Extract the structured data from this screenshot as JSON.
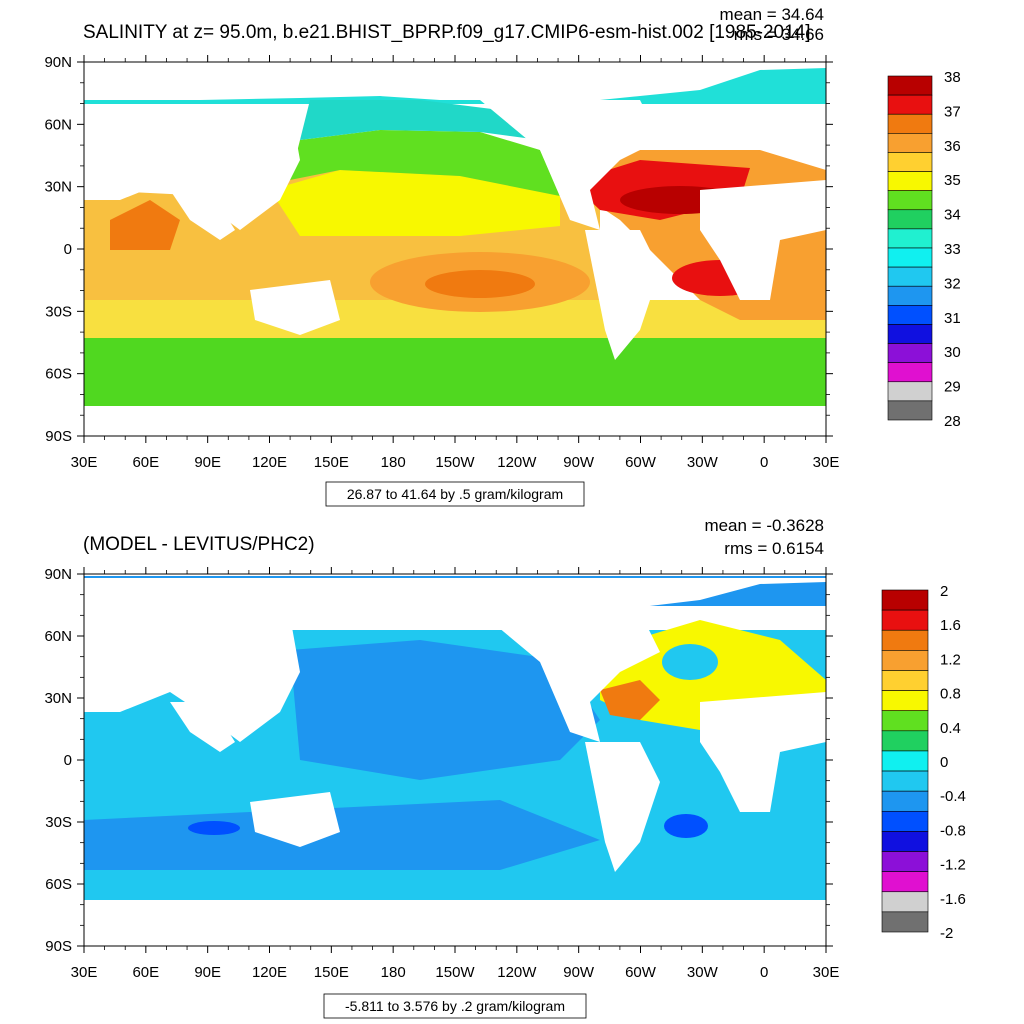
{
  "panels": [
    {
      "title": "SALINITY at z=  95.0m, b.e21.BHIST_BPRP.f09_g17.CMIP6-esm-hist.002 [1985-2014]",
      "stats": [
        "mean = 34.64",
        "rms = 34.66"
      ],
      "contour_info": "26.87 to 41.64 by .5 gram/kilogram"
    },
    {
      "title": "(MODEL - LEVITUS/PHC2)",
      "stats": [
        "mean = -0.3628",
        "rms = 0.6154"
      ],
      "contour_info": "-5.811 to 3.576 by .2 gram/kilogram"
    }
  ],
  "chart_data": [
    {
      "type": "heatmap",
      "title": "SALINITY at z=  95.0m, b.e21.BHIST_BPRP.f09_g17.CMIP6-esm-hist.002 [1985-2014]",
      "units": "gram/kilogram",
      "mean": 34.64,
      "rms": 34.66,
      "x_ticks": [
        "30E",
        "60E",
        "90E",
        "120E",
        "150E",
        "180",
        "150W",
        "120W",
        "90W",
        "60W",
        "30W",
        "0",
        "30E"
      ],
      "y_ticks": [
        "90N",
        "60N",
        "30N",
        "0",
        "30S",
        "60S",
        "90S"
      ],
      "xlim": [
        30,
        390
      ],
      "ylim": [
        -90,
        90
      ],
      "colorbar": {
        "labels": [
          "38",
          "37",
          "36",
          "35",
          "34",
          "33",
          "32",
          "31",
          "30",
          "29",
          "28"
        ],
        "colors": [
          "#b80000",
          "#e81010",
          "#f07a10",
          "#f8a030",
          "#ffd030",
          "#f8f800",
          "#60e020",
          "#20d060",
          "#20f0d0",
          "#10f0f0",
          "#20c8f0",
          "#1e96f0",
          "#0050ff",
          "#1010e0",
          "#8c10d8",
          "#e010d0",
          "#d0d0d0",
          "#707070"
        ],
        "reversed": true
      }
    },
    {
      "type": "heatmap",
      "title": "(MODEL - LEVITUS/PHC2)",
      "units": "gram/kilogram",
      "mean": -0.3628,
      "rms": 0.6154,
      "x_ticks": [
        "30E",
        "60E",
        "90E",
        "120E",
        "150E",
        "180",
        "150W",
        "120W",
        "90W",
        "60W",
        "30W",
        "0",
        "30E"
      ],
      "y_ticks": [
        "90N",
        "60N",
        "30N",
        "0",
        "30S",
        "60S",
        "90S"
      ],
      "xlim": [
        30,
        390
      ],
      "ylim": [
        -90,
        90
      ],
      "colorbar": {
        "labels": [
          "2",
          "1.6",
          "1.2",
          "0.8",
          "0.4",
          "0",
          "-0.4",
          "-0.8",
          "-1.2",
          "-1.6",
          "-2"
        ],
        "colors": [
          "#b80000",
          "#e81010",
          "#f07a10",
          "#f8a030",
          "#ffd030",
          "#f8f800",
          "#60e020",
          "#20d060",
          "#10f0f0",
          "#20c8f0",
          "#1e96f0",
          "#0050ff",
          "#1010e0",
          "#8c10d8",
          "#e010d0",
          "#d0d0d0",
          "#707070"
        ],
        "reversed": true
      }
    }
  ]
}
